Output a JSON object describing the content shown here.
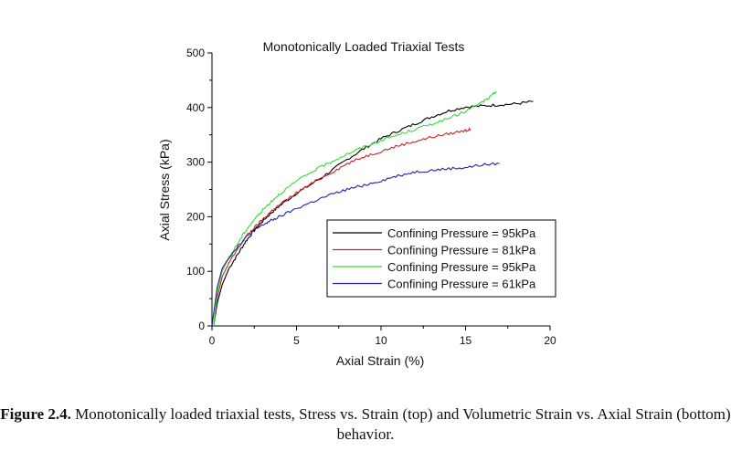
{
  "chart_data": {
    "type": "line",
    "title": "Monotonically Loaded Triaxial Tests",
    "xlabel": "Axial Strain (%)",
    "ylabel": "Axial Stress (kPa)",
    "xlim": [
      0,
      20
    ],
    "ylim": [
      0,
      500
    ],
    "xticks": [
      0,
      5,
      10,
      15,
      20
    ],
    "yticks": [
      0,
      100,
      200,
      300,
      400,
      500
    ],
    "grid": false,
    "legend_position": "bottom-right",
    "series": [
      {
        "name": "Confining Pressure = 95kPa",
        "color": "#000000",
        "points": [
          [
            0.1,
            0
          ],
          [
            0.3,
            40
          ],
          [
            0.6,
            75
          ],
          [
            1,
            105
          ],
          [
            1.5,
            130
          ],
          [
            2,
            155
          ],
          [
            2.5,
            175
          ],
          [
            3,
            192
          ],
          [
            3.5,
            207
          ],
          [
            4,
            220
          ],
          [
            5,
            243
          ],
          [
            6,
            262
          ],
          [
            7,
            283
          ],
          [
            8,
            305
          ],
          [
            9,
            325
          ],
          [
            10,
            343
          ],
          [
            11,
            357
          ],
          [
            12,
            370
          ],
          [
            13,
            383
          ],
          [
            14,
            394
          ],
          [
            15,
            401
          ],
          [
            16,
            403
          ],
          [
            17,
            405
          ],
          [
            18,
            407
          ],
          [
            19,
            411
          ]
        ]
      },
      {
        "name": "Confining Pressure = 81kPa",
        "color": "#cc2222",
        "points": [
          [
            0.1,
            0
          ],
          [
            0.3,
            50
          ],
          [
            0.6,
            90
          ],
          [
            1,
            115
          ],
          [
            1.5,
            140
          ],
          [
            2,
            163
          ],
          [
            2.5,
            180
          ],
          [
            3,
            195
          ],
          [
            3.5,
            210
          ],
          [
            4,
            222
          ],
          [
            5,
            244
          ],
          [
            6,
            263
          ],
          [
            7,
            280
          ],
          [
            8,
            297
          ],
          [
            9,
            310
          ],
          [
            10,
            320
          ],
          [
            11,
            330
          ],
          [
            12,
            338
          ],
          [
            13,
            346
          ],
          [
            14,
            352
          ],
          [
            15,
            358
          ],
          [
            15.3,
            360
          ]
        ]
      },
      {
        "name": "Confining Pressure = 95kPa",
        "color": "#33dd33",
        "points": [
          [
            0.1,
            0
          ],
          [
            0.3,
            60
          ],
          [
            0.6,
            100
          ],
          [
            1,
            125
          ],
          [
            1.5,
            150
          ],
          [
            2,
            175
          ],
          [
            2.5,
            195
          ],
          [
            3,
            212
          ],
          [
            3.5,
            228
          ],
          [
            4,
            242
          ],
          [
            5,
            265
          ],
          [
            6,
            284
          ],
          [
            7,
            300
          ],
          [
            8,
            315
          ],
          [
            9,
            328
          ],
          [
            10,
            340
          ],
          [
            11,
            350
          ],
          [
            12,
            360
          ],
          [
            13,
            370
          ],
          [
            14,
            380
          ],
          [
            15,
            393
          ],
          [
            16,
            410
          ],
          [
            16.5,
            420
          ],
          [
            16.8,
            430
          ]
        ]
      },
      {
        "name": "Confining Pressure = 61kPa",
        "color": "#2222aa",
        "points": [
          [
            0,
            0
          ],
          [
            0.3,
            70
          ],
          [
            0.6,
            105
          ],
          [
            1,
            125
          ],
          [
            1.5,
            145
          ],
          [
            2,
            162
          ],
          [
            2.5,
            175
          ],
          [
            3,
            185
          ],
          [
            3.5,
            193
          ],
          [
            4,
            200
          ],
          [
            5,
            215
          ],
          [
            6,
            228
          ],
          [
            7,
            240
          ],
          [
            8,
            250
          ],
          [
            9,
            258
          ],
          [
            10,
            266
          ],
          [
            11,
            275
          ],
          [
            12,
            282
          ],
          [
            13,
            285
          ],
          [
            14,
            288
          ],
          [
            15,
            290
          ],
          [
            16,
            295
          ],
          [
            17,
            297
          ]
        ]
      }
    ]
  },
  "caption": {
    "label": "Figure 2.4.",
    "text": " Monotonically loaded triaxial tests, Stress vs. Strain (top) and Volumetric Strain vs. Axial Strain (bottom) behavior."
  }
}
